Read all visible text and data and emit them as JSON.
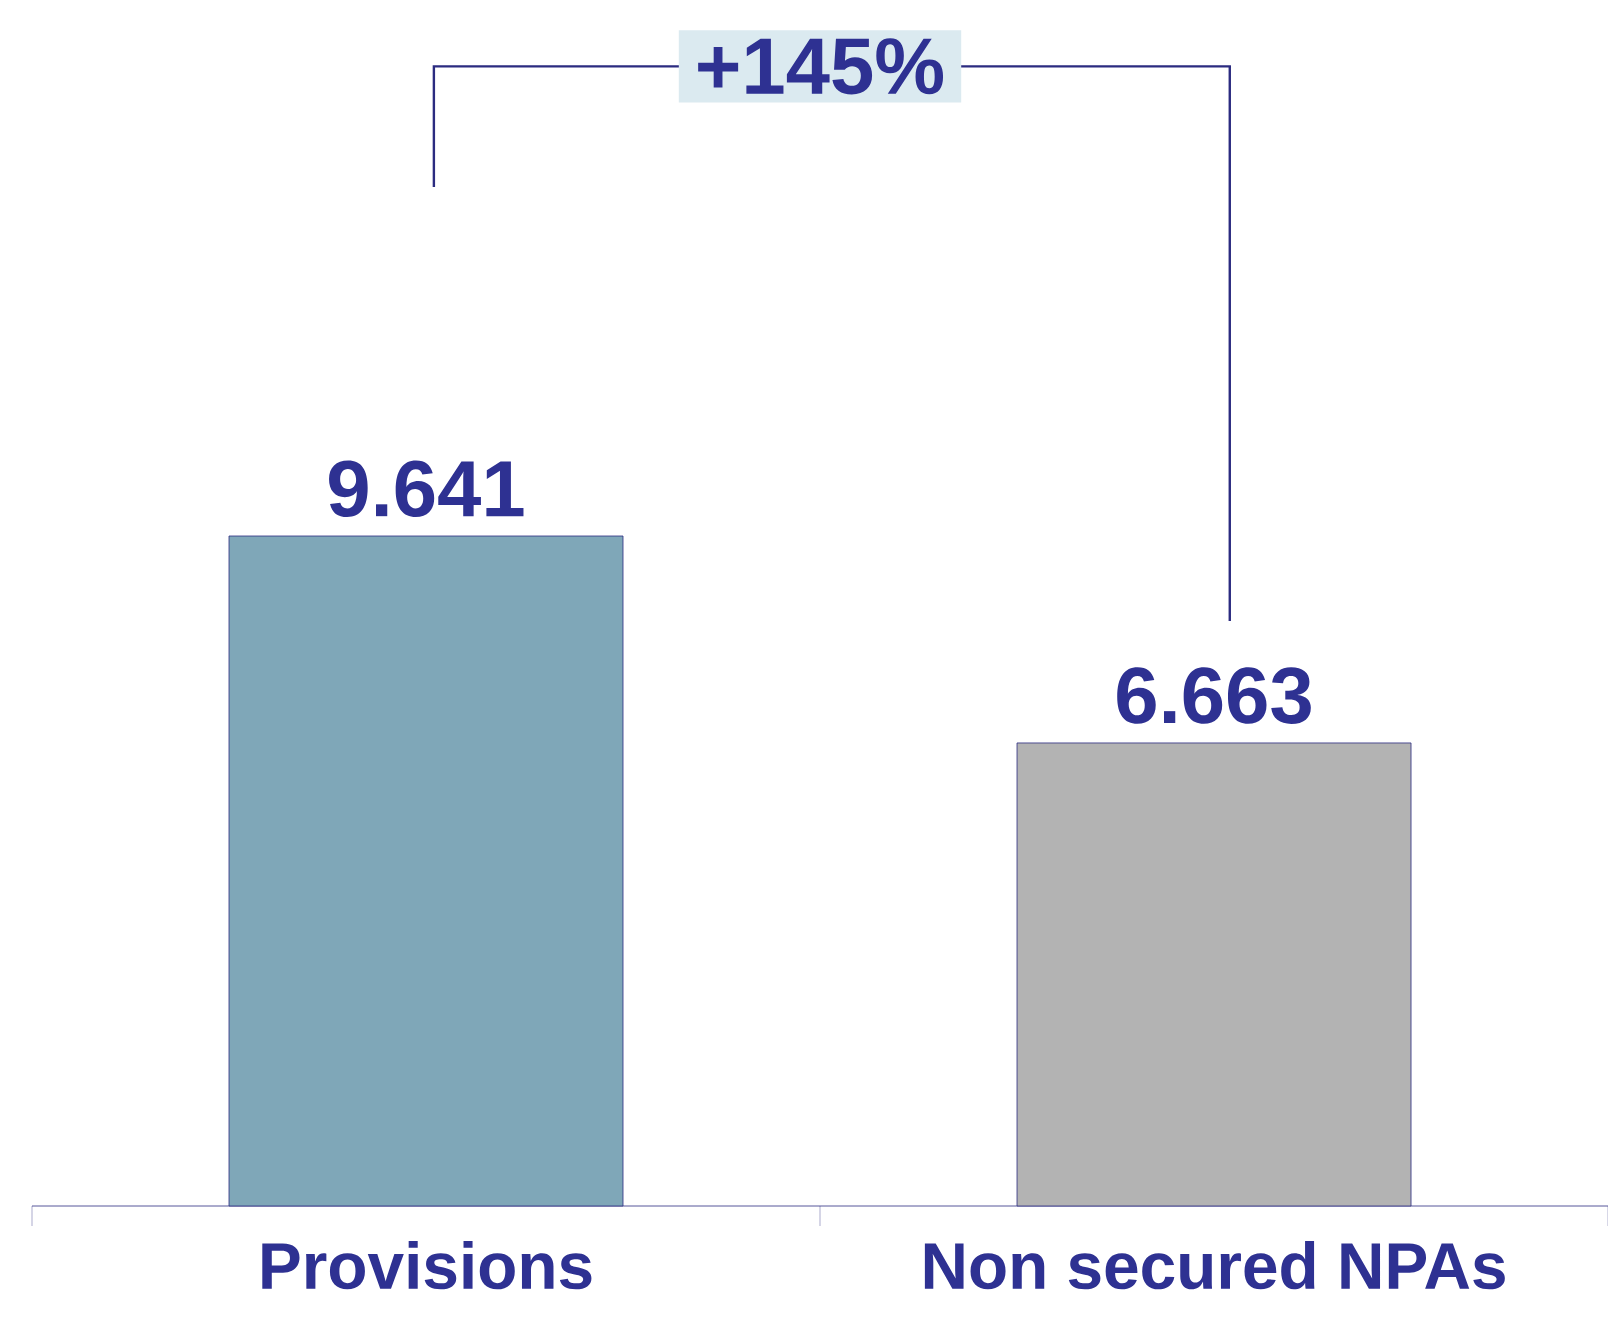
{
  "chart_data": {
    "type": "bar",
    "categories": [
      "Provisions",
      "Non secured NPAs"
    ],
    "values": [
      9.641,
      6.663
    ],
    "colors": [
      "#7fa7b8",
      "#b3b3b3"
    ],
    "data_labels": true,
    "annotations": [
      "+145%"
    ]
  }
}
